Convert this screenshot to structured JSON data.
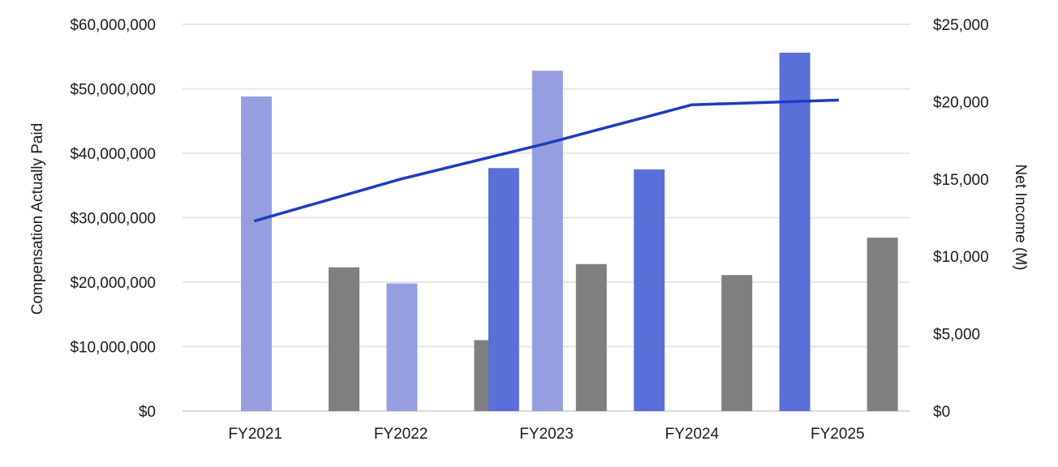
{
  "chart_data": {
    "type": "bar",
    "title": "",
    "categories": [
      "FY2021",
      "FY2022",
      "FY2023",
      "FY2024",
      "FY2025"
    ],
    "slots_per_category": 5,
    "series": [
      {
        "kind": "bar",
        "axis": "left",
        "color": "#5b6fd9",
        "values": [
          null,
          null,
          37700000,
          37500000,
          55600000
        ]
      },
      {
        "kind": "bar",
        "axis": "left",
        "color": "#969edf",
        "values": [
          48800000,
          19800000,
          52800000,
          null,
          null
        ]
      },
      {
        "kind": "bar",
        "axis": "left",
        "color": "#7f7f7f",
        "values": [
          22300000,
          11000000,
          22800000,
          21100000,
          26900000
        ]
      },
      {
        "kind": "line",
        "axis": "right",
        "name": "Net Income (M)",
        "color": "#1f3bbf",
        "values": [
          12300,
          15000,
          17300,
          19800,
          20100
        ]
      }
    ],
    "bar_slots": [
      [
        null,
        1,
        null,
        2,
        null
      ],
      [
        null,
        1,
        null,
        2,
        null
      ],
      [
        0,
        1,
        2,
        null,
        null
      ],
      [
        0,
        null,
        2,
        null,
        null
      ],
      [
        0,
        null,
        2,
        null,
        null
      ]
    ],
    "y_left": {
      "label": "Compensation Actually Paid",
      "min": 0,
      "max": 60000000,
      "ticks": [
        0,
        10000000,
        20000000,
        30000000,
        40000000,
        50000000,
        60000000
      ],
      "tick_labels": [
        "$0",
        "$10,000,000",
        "$20,000,000",
        "$30,000,000",
        "$40,000,000",
        "$50,000,000",
        "$60,000,000"
      ]
    },
    "y_right": {
      "label": "Net Income (M)",
      "min": 0,
      "max": 25000,
      "ticks": [
        0,
        5000,
        10000,
        15000,
        20000,
        25000
      ],
      "tick_labels": [
        "$0",
        "$5,000",
        "$10,000",
        "$15,000",
        "$20,000",
        "$25,000"
      ]
    },
    "grid": true,
    "legend": "none"
  }
}
